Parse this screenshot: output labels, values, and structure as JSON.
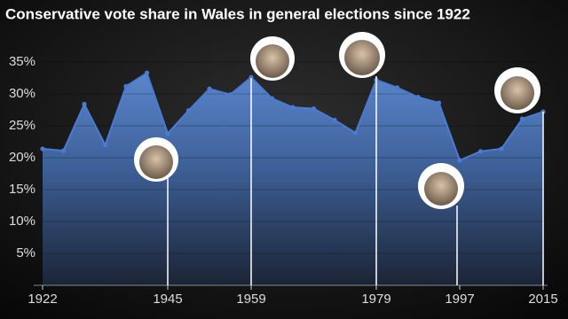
{
  "chart_data": {
    "type": "area",
    "title": "Conservative vote share in Wales in general elections since 1922",
    "categories": [
      "1922",
      null,
      null,
      null,
      null,
      null,
      "1945",
      null,
      null,
      null,
      "1959",
      null,
      null,
      null,
      null,
      null,
      "1979",
      null,
      null,
      null,
      "1997",
      null,
      null,
      null,
      "2015"
    ],
    "values": [
      21.4,
      21.1,
      28.4,
      22.0,
      31.2,
      33.3,
      23.8,
      27.4,
      30.8,
      29.9,
      32.6,
      29.3,
      27.9,
      27.7,
      25.9,
      23.9,
      32.2,
      31.0,
      29.5,
      28.6,
      19.6,
      21.0,
      21.4,
      26.1,
      27.2
    ],
    "color": "#4a7bd4",
    "ylim": [
      0,
      35
    ],
    "yticks": [
      {
        "value": 5,
        "label": "5%"
      },
      {
        "value": 10,
        "label": "10%"
      },
      {
        "value": 15,
        "label": "15%"
      },
      {
        "value": 20,
        "label": "20%"
      },
      {
        "value": 25,
        "label": "25%"
      },
      {
        "value": 30,
        "label": "30%"
      },
      {
        "value": 35,
        "label": "35%"
      }
    ],
    "grid": true
  }
}
